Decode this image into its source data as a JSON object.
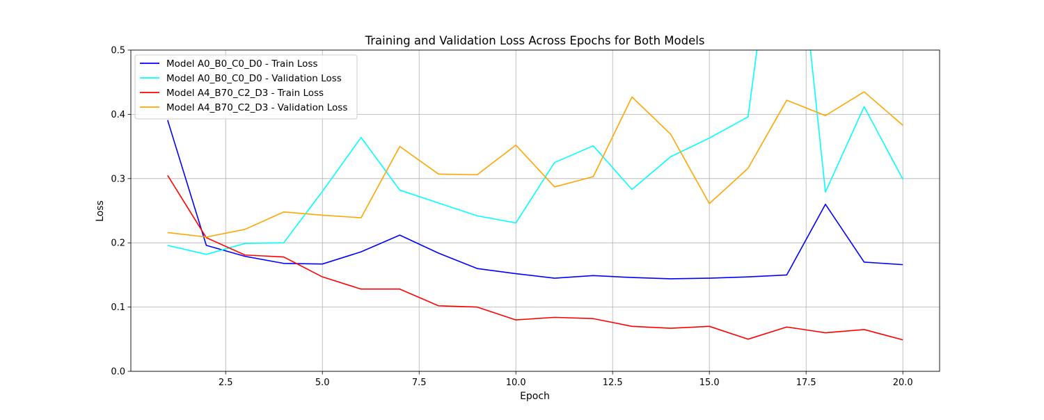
{
  "chart_data": {
    "type": "line",
    "title": "Training and Validation Loss Across Epochs for Both Models",
    "xlabel": "Epoch",
    "ylabel": "Loss",
    "xlim": [
      0.05,
      20.95
    ],
    "ylim": [
      0,
      0.5
    ],
    "xticks": [
      2.5,
      5.0,
      7.5,
      10.0,
      12.5,
      15.0,
      17.5,
      20.0
    ],
    "xtick_labels": [
      "2.5",
      "5.0",
      "7.5",
      "10.0",
      "12.5",
      "15.0",
      "17.5",
      "20.0"
    ],
    "yticks": [
      0.0,
      0.1,
      0.2,
      0.3,
      0.4,
      0.5
    ],
    "ytick_labels": [
      "0.0",
      "0.1",
      "0.2",
      "0.3",
      "0.4",
      "0.5"
    ],
    "grid": true,
    "legend_position": "top-left",
    "x": [
      1,
      2,
      3,
      4,
      5,
      6,
      7,
      8,
      9,
      10,
      11,
      12,
      13,
      14,
      15,
      16,
      17,
      18,
      19,
      20
    ],
    "series": [
      {
        "name": "Model A0_B0_C0_D0 - Train Loss",
        "color": "#0000ff",
        "values": [
          0.391,
          0.196,
          0.179,
          0.168,
          0.167,
          0.186,
          0.212,
          0.184,
          0.16,
          0.152,
          0.145,
          0.149,
          0.146,
          0.144,
          0.145,
          0.147,
          0.15,
          0.26,
          0.17,
          0.166
        ]
      },
      {
        "name": "Model A0_B0_C0_D0 - Validation Loss",
        "color": "#00ffff",
        "values": [
          0.196,
          0.182,
          0.199,
          0.2,
          0.28,
          0.364,
          0.282,
          0.262,
          0.242,
          0.231,
          0.325,
          0.351,
          0.283,
          0.334,
          0.363,
          0.396,
          0.85,
          0.279,
          0.412,
          0.299
        ]
      },
      {
        "name": "Model A4_B70_C2_D3 - Train Loss",
        "color": "#ff0000",
        "values": [
          0.305,
          0.208,
          0.181,
          0.178,
          0.147,
          0.128,
          0.128,
          0.102,
          0.1,
          0.08,
          0.084,
          0.082,
          0.07,
          0.067,
          0.07,
          0.05,
          0.069,
          0.06,
          0.065,
          0.049
        ]
      },
      {
        "name": "Model A4_B70_C2_D3 - Validation Loss",
        "color": "#ffa500",
        "values": [
          0.216,
          0.209,
          0.221,
          0.248,
          0.243,
          0.239,
          0.35,
          0.307,
          0.306,
          0.352,
          0.287,
          0.303,
          0.427,
          0.369,
          0.261,
          0.316,
          0.422,
          0.398,
          0.435,
          0.383
        ]
      }
    ]
  }
}
